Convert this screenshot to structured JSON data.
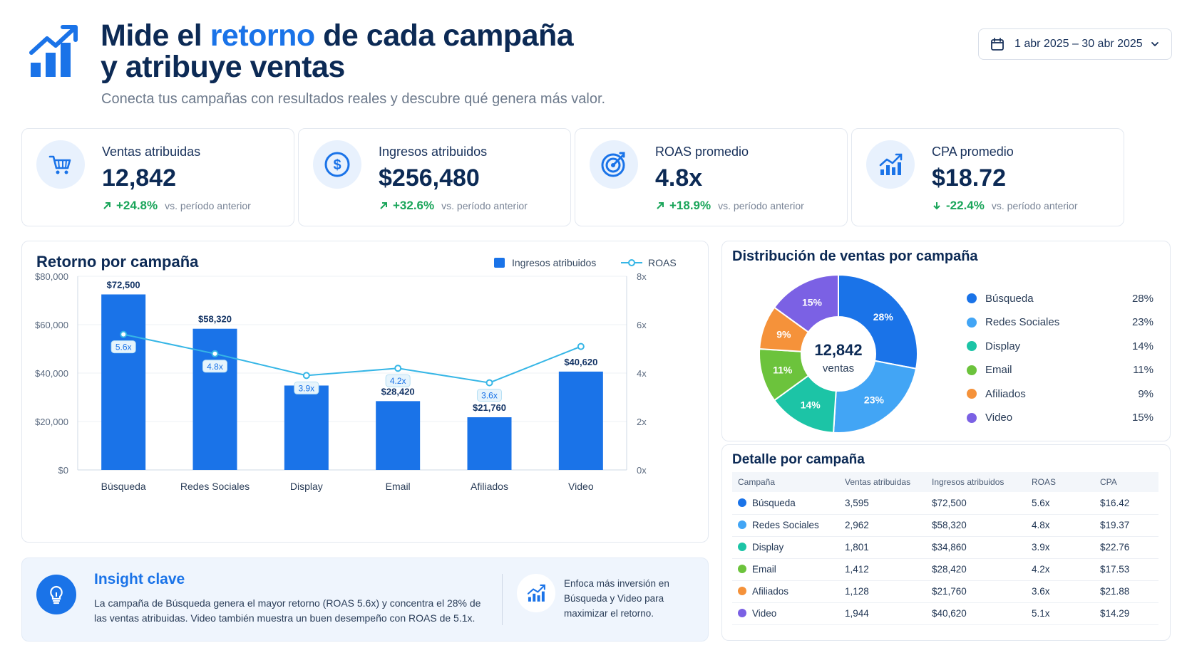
{
  "header": {
    "title_pre": "Mide el ",
    "title_accent": "retorno",
    "title_post": " de cada campaña",
    "title_line2": "y atribuye ventas",
    "subtitle": "Conecta tus campañas con resultados reales y descubre qué genera más valor."
  },
  "date_range": {
    "label": "1 abr 2025 – 30 abr 2025"
  },
  "kpis": [
    {
      "label": "Ventas atribuidas",
      "value": "12,842",
      "change": "+24.8%",
      "compare": "vs. período anterior",
      "icon": "cart-icon"
    },
    {
      "label": "Ingresos atribuidos",
      "value": "$256,480",
      "change": "+32.6%",
      "compare": "vs. período anterior",
      "icon": "dollar-icon"
    },
    {
      "label": "ROAS promedio",
      "value": "4.8x",
      "change": "+18.9%",
      "compare": "vs. período anterior",
      "icon": "target-icon"
    },
    {
      "label": "CPA promedio",
      "value": "$18.72",
      "change": "-22.4%",
      "compare": "vs. período anterior",
      "icon": "trend-icon"
    }
  ],
  "chart_data": [
    {
      "type": "bar",
      "title": "Retorno por campaña",
      "categories": [
        "Búsqueda",
        "Redes Sociales",
        "Display",
        "Email",
        "Afiliados",
        "Video"
      ],
      "series": [
        {
          "name": "Ingresos atribuidos",
          "type": "bar",
          "values": [
            72500,
            58320,
            34860,
            28420,
            21760,
            40620
          ],
          "labels": [
            "$72,500",
            "$58,320",
            "",
            "$28,420",
            "$21,760",
            "$40,620"
          ]
        },
        {
          "name": "ROAS",
          "type": "line",
          "axis": "right",
          "values": [
            5.6,
            4.8,
            3.9,
            4.2,
            3.6,
            5.1
          ],
          "labels": [
            "5.6x",
            "4.8x",
            "3.9x",
            "4.2x",
            "3.6x",
            ""
          ]
        }
      ],
      "y_left": {
        "min": 0,
        "max": 80000,
        "ticks": [
          "$0",
          "$20,000",
          "$40,000",
          "$60,000",
          "$80,000"
        ]
      },
      "y_right": {
        "min": 0,
        "max": 8,
        "ticks": [
          "0x",
          "2x",
          "4x",
          "6x",
          "8x"
        ]
      },
      "legend_position": "top-right",
      "colors": {
        "bar": "#1a73e8",
        "line": "#36b6e6"
      }
    },
    {
      "type": "pie",
      "title": "Distribución de ventas por campaña",
      "center_value": "12,842",
      "center_label": "ventas",
      "slices": [
        {
          "name": "Búsqueda",
          "value": 28,
          "label": "28%",
          "color": "#1a73e8"
        },
        {
          "name": "Redes Sociales",
          "value": 23,
          "label": "23%",
          "color": "#42a5f5"
        },
        {
          "name": "Display",
          "value": 14,
          "label": "14%",
          "color": "#1cc4a6"
        },
        {
          "name": "Email",
          "value": 11,
          "label": "11%",
          "color": "#6cc33c"
        },
        {
          "name": "Afiliados",
          "value": 9,
          "label": "9%",
          "color": "#f5923a"
        },
        {
          "name": "Video",
          "value": 15,
          "label": "15%",
          "color": "#7b61e4"
        }
      ]
    }
  ],
  "insight": {
    "title": "Insight clave",
    "body": "La campaña de Búsqueda genera el mayor retorno (ROAS 5.6x) y concentra el 28% de las ventas atribuidas. Video también muestra un buen desempeño con ROAS de 5.1x.",
    "tip": "Enfoca más inversión en Búsqueda y Video para maximizar el retorno."
  },
  "detail": {
    "title": "Detalle por campaña",
    "columns": [
      "Campaña",
      "Ventas atribuidas",
      "Ingresos atribuidos",
      "ROAS",
      "CPA"
    ],
    "rows": [
      {
        "name": "Búsqueda",
        "sales": "3,595",
        "revenue": "$72,500",
        "roas": "5.6x",
        "cpa": "$16.42",
        "color": "#1a73e8"
      },
      {
        "name": "Redes Sociales",
        "sales": "2,962",
        "revenue": "$58,320",
        "roas": "4.8x",
        "cpa": "$19.37",
        "color": "#42a5f5"
      },
      {
        "name": "Display",
        "sales": "1,801",
        "revenue": "$34,860",
        "roas": "3.9x",
        "cpa": "$22.76",
        "color": "#1cc4a6"
      },
      {
        "name": "Email",
        "sales": "1,412",
        "revenue": "$28,420",
        "roas": "4.2x",
        "cpa": "$17.53",
        "color": "#6cc33c"
      },
      {
        "name": "Afiliados",
        "sales": "1,128",
        "revenue": "$21,760",
        "roas": "3.6x",
        "cpa": "$21.88",
        "color": "#f5923a"
      },
      {
        "name": "Video",
        "sales": "1,944",
        "revenue": "$40,620",
        "roas": "5.1x",
        "cpa": "$14.29",
        "color": "#7b61e4"
      }
    ]
  }
}
